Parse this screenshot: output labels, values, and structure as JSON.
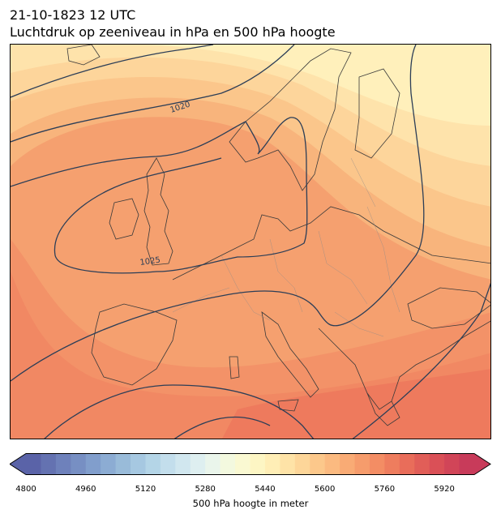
{
  "header": {
    "datetime": "21-10-1823 12 UTC",
    "subtitle": "Luchtdruk op zeeniveau in hPa en 500 hPa hoogte"
  },
  "map": {
    "isobar_labels": [
      "1020",
      "1025"
    ],
    "contour_color": "#2c3e57",
    "coastline_color": "#3a3a3a",
    "border_color": "#8a8a8a"
  },
  "colorbar": {
    "label": "500 hPa hoogte in meter",
    "ticks": [
      "4800",
      "4960",
      "5120",
      "5280",
      "5440",
      "5600",
      "5760",
      "5920"
    ],
    "min": 4800,
    "max": 6000,
    "step": 40,
    "colormap": "RdYlBu_r",
    "extend": "both"
  }
}
